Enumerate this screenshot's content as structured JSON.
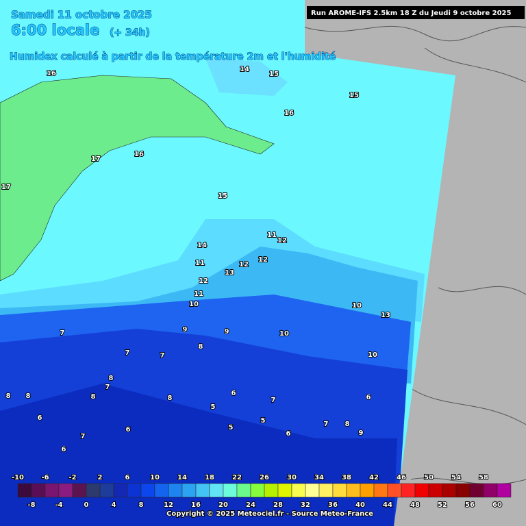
{
  "header": {
    "date": "Samedi 11 octobre 2025",
    "time": "6:00 locale",
    "lead": "(+ 34h)",
    "parameter": "Humidex calculé à partir de la température 2m et l'humidité",
    "run": "Run AROME-IFS 2.5km 18 Z du Jeudi 9 octobre 2025"
  },
  "map_labels": [
    16,
    14,
    15,
    15,
    16,
    17,
    16,
    17,
    15,
    14,
    11,
    12,
    11,
    12,
    12,
    13,
    12,
    11,
    10,
    10,
    13,
    9,
    9,
    10,
    8,
    10,
    7,
    7,
    7,
    8,
    7,
    8,
    8,
    8,
    8,
    6,
    7,
    6,
    5,
    6,
    5,
    5,
    7,
    8,
    9,
    6,
    7,
    6,
    6
  ],
  "colorbar": {
    "colors": [
      "#3c0a3c",
      "#5a0f55",
      "#7a1570",
      "#8c1c80",
      "#5c1450",
      "#2c3a6e",
      "#1e3c9a",
      "#1428b4",
      "#0c34d2",
      "#0c46ee",
      "#1464f0",
      "#1e84f0",
      "#2ca4f2",
      "#44c4f4",
      "#62e4f4",
      "#6cfcdc",
      "#6cfc8c",
      "#86fc3c",
      "#b4f000",
      "#e0f400",
      "#f8fc50",
      "#ffff96",
      "#fff064",
      "#ffdc3c",
      "#ffbe1e",
      "#ffa000",
      "#ff7814",
      "#ff5028",
      "#ff2424",
      "#f00000",
      "#cc0000",
      "#aa0000",
      "#880000",
      "#700030",
      "#900068",
      "#b000a0"
    ],
    "top_labels": [
      -10,
      -6,
      -2,
      2,
      6,
      10,
      14,
      18,
      22,
      26,
      30,
      34,
      38,
      42,
      46,
      50,
      54,
      58
    ],
    "bottom_labels": [
      -8,
      -4,
      0,
      4,
      8,
      12,
      16,
      20,
      24,
      28,
      32,
      36,
      40,
      44,
      48,
      52,
      56,
      60
    ]
  },
  "copyright": "Copyright © 2025 Meteociel.fr - Source Meteo-France"
}
